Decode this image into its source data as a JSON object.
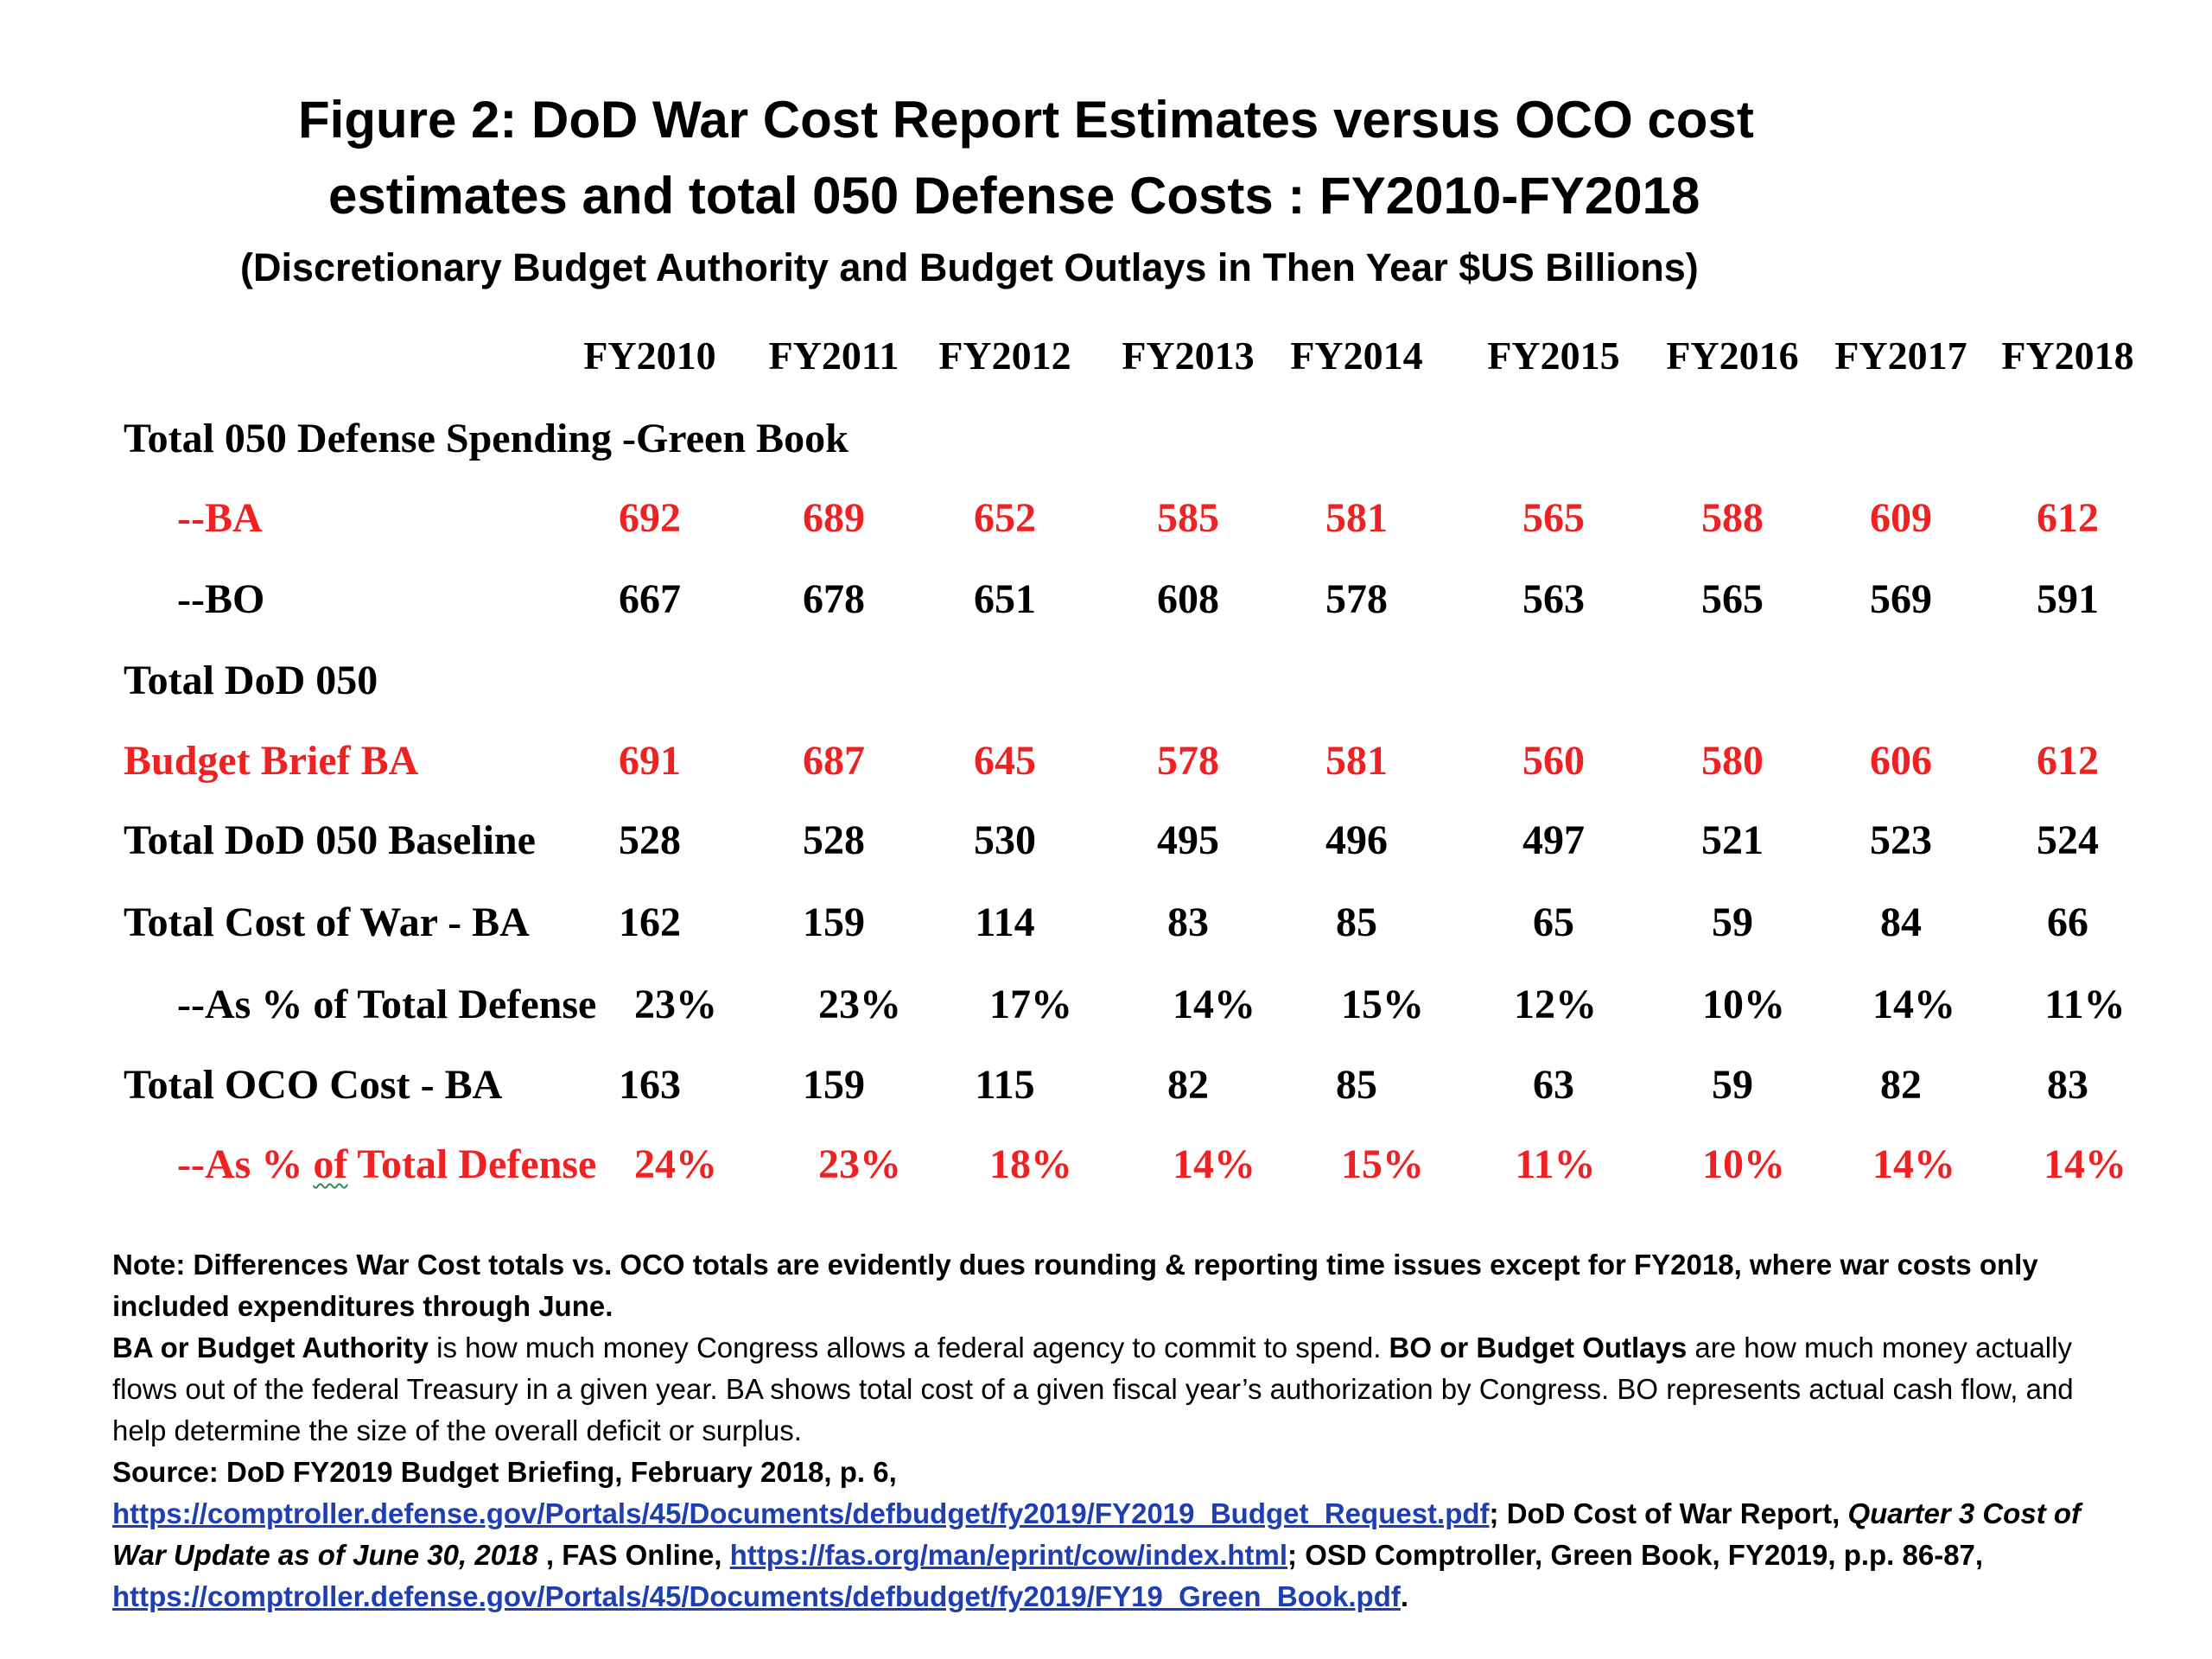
{
  "title": {
    "line1": "Figure 2: DoD  War Cost Report Estimates versus OCO cost",
    "line2": "estimates and  total 050 Defense Costs : FY2010-FY2018",
    "subtitle": "(Discretionary Budget Authority and Budget Outlays in Then Year $US Billions)"
  },
  "table": {
    "years": [
      "FY2010",
      "FY2011",
      "FY2012",
      "FY2013",
      "FY2014",
      "FY2015",
      "FY2016",
      "FY2017",
      "FY2018"
    ],
    "section_green_book": "Total 050 Defense Spending -Green Book",
    "section_dod": "Total DoD 050",
    "rows": {
      "ba": {
        "label": "--BA",
        "values": [
          "692",
          "689",
          "652",
          "585",
          "581",
          "565",
          "588",
          "609",
          "612"
        ]
      },
      "bo": {
        "label": "--BO",
        "values": [
          "667",
          "678",
          "651",
          "608",
          "578",
          "563",
          "565",
          "569",
          "591"
        ]
      },
      "brief": {
        "label": "Budget Brief BA",
        "values": [
          "691",
          "687",
          "645",
          "578",
          "581",
          "560",
          "580",
          "606",
          "612"
        ]
      },
      "baseline": {
        "label": "Total DoD 050 Baseline",
        "values": [
          "528",
          "528",
          "530",
          "495",
          "496",
          "497",
          "521",
          "523",
          "524"
        ]
      },
      "war": {
        "label": "Total Cost of War - BA",
        "values": [
          "162",
          "159",
          "114",
          "83",
          "85",
          "65",
          "59",
          "84",
          "66"
        ]
      },
      "war_pct": {
        "label": "--As % of Total Defense",
        "values": [
          "23%",
          "23%",
          "17%",
          "14%",
          "15%",
          "12%",
          "10%",
          "14%",
          "11%"
        ]
      },
      "oco": {
        "label": "Total OCO Cost - BA",
        "values": [
          "163",
          "159",
          "115",
          "82",
          "85",
          "63",
          "59",
          "82",
          "83"
        ]
      },
      "oco_pct": {
        "label_prefix": "--As % ",
        "label_of": "of",
        "label_suffix": " Total Defense",
        "values": [
          "24%",
          "23%",
          "18%",
          "14%",
          "15%",
          "11%",
          "10%",
          "14%",
          "14%"
        ]
      }
    }
  },
  "notes": {
    "note": "Note: Differences War Cost totals  vs. OCO totals  are evidently dues rounding & reporting time issues  except for FY2018, where war costs only included expenditures through June.",
    "ba_term": "BA or Budget Authority",
    "ba_text": " is how much money Congress allows a federal agency to commit to spend. ",
    "bo_term": "BO or Budget Outlays",
    "bo_text": " are how much money actually flows out of the federal Treasury in a given year. BA shows total cost of a given fiscal year’s authorization by Congress. BO represents actual cash flow, and help determine the size of the overall deficit or surplus.",
    "source_prefix": "Source: DoD FY2019 Budget Briefing, February 2018, p. 6,",
    "link1": "https://comptroller.defense.gov/Portals/45/Documents/defbudget/fy2019/FY2019_Budget_Request.pdf",
    "after_link1": "; DoD Cost of War Report, ",
    "quarter_italic": "Quarter 3 Cost of War Update as of June 30, 2018",
    "after_quarter": " , FAS Online, ",
    "link2": "https://fas.org/man/eprint/cow/index.html",
    "after_link2": "; OSD Comptroller, Green Book, FY2019, p.p. 86-87, ",
    "link3": "https://comptroller.defense.gov/Portals/45/Documents/defbudget/fy2019/FY19_Green_Book.pdf",
    "end": "."
  },
  "colors": {
    "highlight": "#ee2222",
    "link": "#1f3fb0",
    "text": "#000000"
  }
}
